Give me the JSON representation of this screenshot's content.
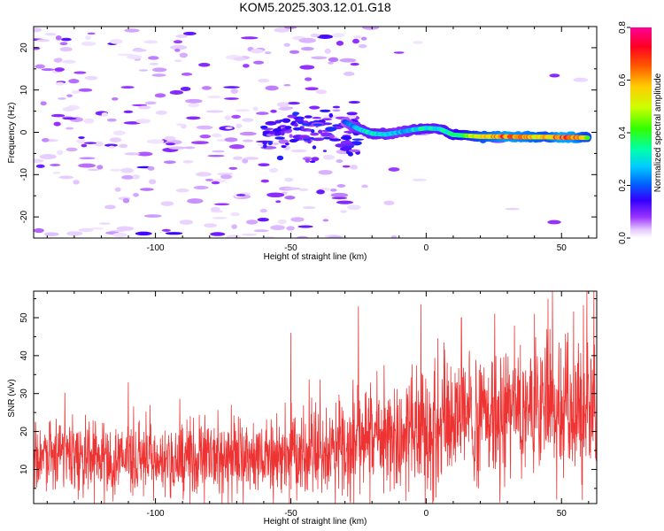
{
  "title": "KOM5.2025.303.12.01.G18",
  "chart_data": [
    {
      "type": "heatmap",
      "title": "KOM5.2025.303.12.01.G18",
      "xlabel": "Height of straight line (km)",
      "ylabel": "Frequency (Hz)",
      "xlim": [
        -145,
        63
      ],
      "ylim": [
        -25,
        25
      ],
      "xticks": [
        -100,
        -50,
        0,
        50
      ],
      "yticks": [
        -20,
        -10,
        0,
        10,
        20
      ],
      "xtick_labels": [
        "-100",
        "-50",
        "0",
        "50"
      ],
      "ytick_labels": [
        "-20",
        "-10",
        "0",
        "10",
        "20"
      ],
      "colorbar": {
        "label": "Normalized spectral amplitude",
        "range": [
          0,
          0.8
        ],
        "ticks": [
          0.0,
          0.2,
          0.4,
          0.6,
          0.8
        ],
        "tick_labels": [
          "0.0",
          "0.2",
          "0.4",
          "0.6",
          "0.8"
        ]
      },
      "ridge": [
        {
          "x": -30,
          "f": 2.5,
          "amp": 0.18
        },
        {
          "x": -25,
          "f": 0.8,
          "amp": 0.28
        },
        {
          "x": -20,
          "f": -0.3,
          "amp": 0.32
        },
        {
          "x": -15,
          "f": -0.5,
          "amp": 0.3
        },
        {
          "x": -10,
          "f": 0.0,
          "amp": 0.26
        },
        {
          "x": -5,
          "f": 0.6,
          "amp": 0.3
        },
        {
          "x": 0,
          "f": 1.0,
          "amp": 0.34
        },
        {
          "x": 5,
          "f": 0.8,
          "amp": 0.32
        },
        {
          "x": 10,
          "f": -0.6,
          "amp": 0.38
        },
        {
          "x": 15,
          "f": -0.8,
          "amp": 0.45
        },
        {
          "x": 20,
          "f": -1.0,
          "amp": 0.55
        },
        {
          "x": 25,
          "f": -1.0,
          "amp": 0.62
        },
        {
          "x": 30,
          "f": -1.0,
          "amp": 0.7
        },
        {
          "x": 35,
          "f": -1.1,
          "amp": 0.66
        },
        {
          "x": 40,
          "f": -1.1,
          "amp": 0.6
        },
        {
          "x": 45,
          "f": -1.1,
          "amp": 0.55
        },
        {
          "x": 50,
          "f": -1.2,
          "amp": 0.72
        },
        {
          "x": 55,
          "f": -1.2,
          "amp": 0.68
        },
        {
          "x": 60,
          "f": -1.3,
          "amp": 0.5
        }
      ],
      "noise": {
        "f_range": [
          -25,
          25
        ],
        "amp_range": [
          0.0,
          0.15
        ]
      }
    },
    {
      "type": "line",
      "xlabel": "Height of straight line (km)",
      "ylabel": "SNR (v/v)",
      "xlim": [
        -145,
        63
      ],
      "ylim": [
        1,
        57
      ],
      "xticks": [
        -100,
        -50,
        0,
        50
      ],
      "yticks": [
        10,
        20,
        30,
        40,
        50
      ],
      "xtick_labels": [
        "-100",
        "-50",
        "0",
        "50"
      ],
      "ytick_labels": [
        "10",
        "20",
        "30",
        "40",
        "50"
      ],
      "color": "#ee3333",
      "trend": [
        {
          "x": -145,
          "mean": 13
        },
        {
          "x": -100,
          "mean": 12.5
        },
        {
          "x": -60,
          "mean": 13
        },
        {
          "x": -30,
          "mean": 15
        },
        {
          "x": -25,
          "mean": 18
        },
        {
          "x": 0,
          "mean": 20
        },
        {
          "x": 20,
          "mean": 23
        },
        {
          "x": 45,
          "mean": 27
        },
        {
          "x": 63,
          "mean": 27
        }
      ],
      "peaks": [
        {
          "x": -25,
          "y": 53
        },
        {
          "x": 13,
          "y": 50
        },
        {
          "x": 40,
          "y": 51
        },
        {
          "x": 45,
          "y": 55
        },
        {
          "x": 62,
          "y": 57
        },
        {
          "x": -50,
          "y": 46
        },
        {
          "x": -110,
          "y": 33
        }
      ]
    }
  ]
}
